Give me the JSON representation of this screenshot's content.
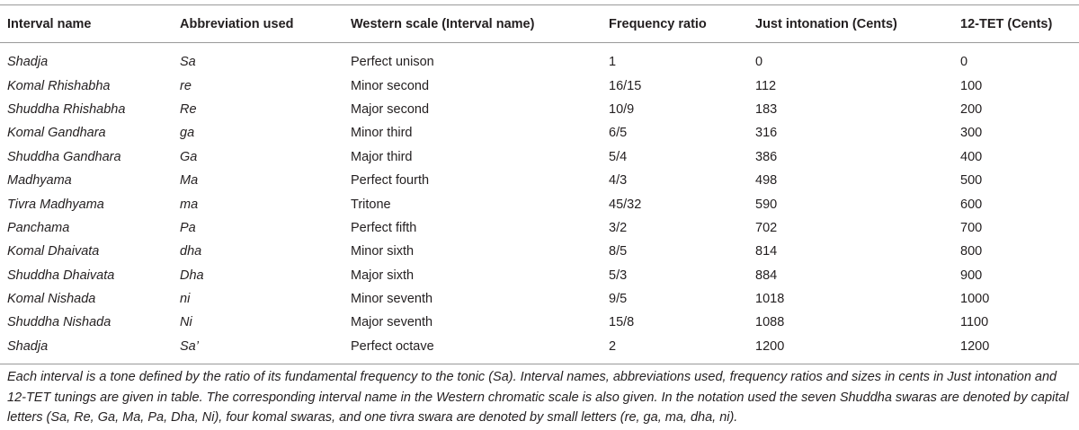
{
  "table": {
    "columns": [
      "Interval name",
      "Abbreviation used",
      "Western scale (Interval name)",
      "Frequency ratio",
      "Just intonation (Cents)",
      "12-TET (Cents)"
    ],
    "rows": [
      [
        "Shadja",
        "Sa",
        "Perfect unison",
        "1",
        0,
        0
      ],
      [
        "Komal Rhishabha",
        "re",
        "Minor second",
        "16/15",
        112,
        100
      ],
      [
        "Shuddha Rhishabha",
        "Re",
        "Major second",
        "10/9",
        183,
        200
      ],
      [
        "Komal Gandhara",
        "ga",
        "Minor third",
        "6/5",
        316,
        300
      ],
      [
        "Shuddha Gandhara",
        "Ga",
        "Major third",
        "5/4",
        386,
        400
      ],
      [
        "Madhyama",
        "Ma",
        "Perfect fourth",
        "4/3",
        498,
        500
      ],
      [
        "Tivra Madhyama",
        "ma",
        "Tritone",
        "45/32",
        590,
        600
      ],
      [
        "Panchama",
        "Pa",
        "Perfect fifth",
        "3/2",
        702,
        700
      ],
      [
        "Komal Dhaivata",
        "dha",
        "Minor sixth",
        "8/5",
        814,
        800
      ],
      [
        "Shuddha Dhaivata",
        "Dha",
        "Major sixth",
        "5/3",
        884,
        900
      ],
      [
        "Komal Nishada",
        "ni",
        "Minor seventh",
        "9/5",
        1018,
        1000
      ],
      [
        "Shuddha Nishada",
        "Ni",
        "Major seventh",
        "15/8",
        1088,
        1100
      ],
      [
        "Shadja",
        "Sa’",
        "Perfect octave",
        "2",
        1200,
        1200
      ]
    ],
    "caption": "Each interval is a tone defined by the ratio of its fundamental frequency to the tonic (Sa). Interval names, abbreviations used, frequency ratios and sizes in cents in Just intonation and 12-TET tunings are given in table. The corresponding interval name in the Western chromatic scale is also given. In the notation used the seven Shuddha swaras are denoted by capital letters (Sa, Re, Ga, Ma, Pa, Dha, Ni), four komal swaras, and one tivra swara are denoted by small letters (re, ga, ma, dha, ni)."
  }
}
